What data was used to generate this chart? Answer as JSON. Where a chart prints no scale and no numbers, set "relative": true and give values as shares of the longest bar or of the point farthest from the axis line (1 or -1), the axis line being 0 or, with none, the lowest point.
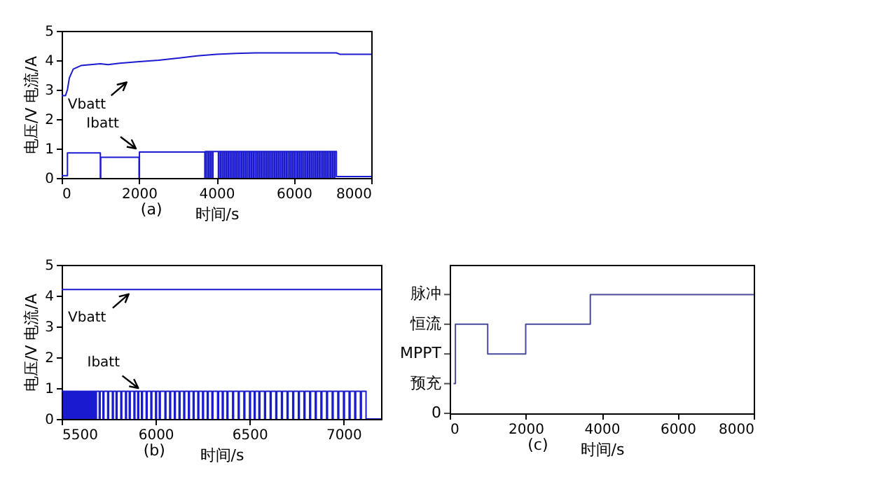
{
  "chart_data": [
    {
      "type": "line",
      "xlabel": "时间/s",
      "ylabel": "电压/V 电流/A",
      "annotations": [
        "(a)"
      ],
      "xlim": [
        0,
        8000
      ],
      "ylim": [
        0,
        5
      ],
      "xticks": [
        0,
        2000,
        4000,
        6000,
        8000
      ],
      "yticks": [
        0,
        1,
        2,
        3,
        4,
        5
      ],
      "series": [
        {
          "name": "Vbatt",
          "color": "#1a1ad0",
          "x": [
            0,
            100,
            150,
            200,
            300,
            500,
            1000,
            1200,
            1500,
            2000,
            2500,
            3000,
            3500,
            4000,
            4500,
            5000,
            6000,
            7100,
            7200,
            8000
          ],
          "values": [
            2.8,
            2.8,
            3.0,
            3.4,
            3.7,
            3.82,
            3.88,
            3.85,
            3.9,
            3.95,
            4.0,
            4.07,
            4.15,
            4.2,
            4.23,
            4.25,
            4.25,
            4.25,
            4.2,
            4.2
          ]
        },
        {
          "name": "Ibatt",
          "color": "#1a1ad0",
          "type": "step",
          "x": [
            0,
            150,
            1000,
            1010,
            2000,
            2010,
            3700,
            3710,
            3750,
            3760,
            3800,
            3810,
            3850,
            3860,
            3900,
            3910,
            4050,
            4060,
            4100,
            4110,
            4150,
            4160,
            4200,
            4210,
            4250,
            4260,
            4300,
            4310,
            4350,
            4360,
            4400,
            4410,
            4450,
            4460,
            4500,
            4510,
            4550,
            4560,
            4600,
            4610,
            4650,
            4660,
            4700,
            4710,
            4750,
            4760,
            4800,
            4810,
            4850,
            4860,
            4900,
            4910,
            4950,
            4960,
            5000,
            5010,
            5050,
            5060,
            5100,
            5110,
            5150,
            5160,
            5200,
            5210,
            5250,
            5260,
            5300,
            5310,
            5350,
            5360,
            5400,
            5410,
            5450,
            5460,
            5500,
            5510,
            5550,
            5560,
            5600,
            5610,
            5650,
            5660,
            5700,
            5710,
            5750,
            5760,
            5800,
            5810,
            5850,
            5860,
            5900,
            5910,
            5950,
            5960,
            6000,
            6010,
            6050,
            6060,
            6100,
            6110,
            6150,
            6160,
            6200,
            6210,
            6250,
            6260,
            6300,
            6310,
            6350,
            6360,
            6400,
            6410,
            6450,
            6460,
            6500,
            6510,
            6550,
            6560,
            6600,
            6610,
            6650,
            6660,
            6700,
            6710,
            6750,
            6760,
            6800,
            6810,
            6850,
            6860,
            6900,
            6910,
            6950,
            6960,
            7000,
            7010,
            7050,
            7060,
            7100,
            8000
          ],
          "values": [
            0.08,
            0.85,
            0,
            0.7,
            0,
            0.88,
            0,
            0.9,
            0,
            0.9,
            0,
            0.9,
            0,
            0.9,
            0,
            0.9,
            0,
            0.9,
            0,
            0.9,
            0,
            0.9,
            0,
            0.9,
            0,
            0.9,
            0,
            0.9,
            0,
            0.9,
            0,
            0.9,
            0,
            0.9,
            0,
            0.9,
            0,
            0.9,
            0,
            0.9,
            0,
            0.9,
            0,
            0.9,
            0,
            0.9,
            0,
            0.9,
            0,
            0.9,
            0,
            0.9,
            0,
            0.9,
            0,
            0.9,
            0,
            0.9,
            0,
            0.9,
            0,
            0.9,
            0,
            0.9,
            0,
            0.9,
            0,
            0.9,
            0,
            0.9,
            0,
            0.9,
            0,
            0.9,
            0,
            0.9,
            0,
            0.9,
            0,
            0.9,
            0,
            0.9,
            0,
            0.9,
            0,
            0.9,
            0,
            0.9,
            0,
            0.9,
            0,
            0.9,
            0,
            0.9,
            0,
            0.9,
            0,
            0.9,
            0,
            0.9,
            0,
            0.9,
            0,
            0.9,
            0,
            0.9,
            0,
            0.9,
            0,
            0.9,
            0,
            0.9,
            0,
            0.9,
            0,
            0.9,
            0,
            0.9,
            0,
            0.9,
            0,
            0.9,
            0,
            0.9,
            0,
            0.9,
            0,
            0.9,
            0,
            0.9,
            0,
            0.9,
            0,
            0.9,
            0,
            0.9,
            0,
            0.9,
            0.05,
            0.05
          ]
        }
      ]
    },
    {
      "type": "line",
      "xlabel": "时间/s",
      "ylabel": "电压/V 电流/A",
      "annotations": [
        "(b)"
      ],
      "xlim": [
        5500,
        7200
      ],
      "ylim": [
        0,
        5
      ],
      "xticks": [
        5500,
        6000,
        6500,
        7000
      ],
      "yticks": [
        0,
        1,
        2,
        3,
        4,
        5
      ],
      "series": [
        {
          "name": "Vbatt",
          "color": "#1a1ad0",
          "x": [
            5500,
            7200
          ],
          "values": [
            4.2,
            4.2
          ]
        },
        {
          "name": "Ibatt",
          "color": "#1a1ad0",
          "type": "step",
          "x": [
            5500,
            5510,
            5515,
            5520,
            5525,
            5530,
            5535,
            5540,
            5545,
            5550,
            5555,
            5560,
            5565,
            5570,
            5575,
            5580,
            5585,
            5590,
            5595,
            5600,
            5605,
            5610,
            5615,
            5620,
            5625,
            5630,
            5635,
            5640,
            5645,
            5650,
            5655,
            5660,
            5665,
            5670,
            5675,
            5680,
            5685,
            5700,
            5705,
            5720,
            5725,
            5745,
            5750,
            5770,
            5775,
            5790,
            5795,
            5815,
            5820,
            5840,
            5845,
            5860,
            5865,
            5885,
            5890,
            5905,
            5910,
            5925,
            5930,
            5950,
            5955,
            5975,
            5980,
            6000,
            6005,
            6020,
            6025,
            6050,
            6055,
            6075,
            6080,
            6100,
            6105,
            6125,
            6130,
            6150,
            6155,
            6175,
            6180,
            6200,
            6205,
            6225,
            6230,
            6250,
            6255,
            6275,
            6280,
            6300,
            6305,
            6330,
            6335,
            6355,
            6360,
            6380,
            6385,
            6410,
            6415,
            6440,
            6445,
            6470,
            6475,
            6500,
            6505,
            6525,
            6530,
            6550,
            6555,
            6580,
            6585,
            6610,
            6615,
            6640,
            6645,
            6670,
            6675,
            6700,
            6705,
            6730,
            6735,
            6760,
            6765,
            6790,
            6795,
            6820,
            6825,
            6850,
            6855,
            6880,
            6885,
            6910,
            6915,
            6940,
            6945,
            6970,
            6975,
            7000,
            7005,
            7030,
            7035,
            7060,
            7065,
            7090,
            7095,
            7120,
            7200
          ],
          "values": [
            0.9,
            0,
            0.9,
            0,
            0.9,
            0,
            0.9,
            0,
            0.9,
            0,
            0.9,
            0,
            0.9,
            0,
            0.9,
            0,
            0.9,
            0,
            0.9,
            0,
            0.9,
            0,
            0.9,
            0,
            0.9,
            0,
            0.9,
            0,
            0.9,
            0,
            0.9,
            0,
            0.9,
            0,
            0.9,
            0,
            0.9,
            0,
            0.9,
            0,
            0.9,
            0,
            0.9,
            0,
            0.9,
            0,
            0.9,
            0,
            0.9,
            0,
            0.9,
            0,
            0.9,
            0,
            0.9,
            0,
            0.9,
            0,
            0.9,
            0,
            0.9,
            0,
            0.9,
            0,
            0.9,
            0,
            0.9,
            0,
            0.9,
            0,
            0.9,
            0,
            0.9,
            0,
            0.9,
            0,
            0.9,
            0,
            0.9,
            0,
            0.9,
            0,
            0.9,
            0,
            0.9,
            0,
            0.9,
            0,
            0.9,
            0,
            0.9,
            0,
            0.9,
            0,
            0.9,
            0,
            0.9,
            0,
            0.9,
            0,
            0.9,
            0,
            0.9,
            0,
            0.9,
            0,
            0.9,
            0,
            0.9,
            0,
            0.9,
            0,
            0.9,
            0,
            0.9,
            0,
            0.9,
            0,
            0.9,
            0,
            0.9,
            0,
            0.9,
            0,
            0.9,
            0,
            0.9,
            0,
            0.9,
            0,
            0.9,
            0,
            0.9,
            0,
            0.9,
            0,
            0.9,
            0,
            0.9,
            0,
            0.9,
            0,
            0.9,
            0,
            0
          ]
        }
      ]
    },
    {
      "type": "step",
      "relative": true,
      "xlabel": "时间/s",
      "annotations": [
        "(c)",
        "0",
        "预充",
        "MPPT",
        "恒流",
        "脉冲"
      ],
      "xlim": [
        0,
        8000
      ],
      "xticks": [
        0,
        2000,
        4000,
        6000,
        8000
      ],
      "series": [
        {
          "color": "#4a4a9a",
          "x": [
            100,
            150,
            1000,
            2000,
            3700,
            8000
          ],
          "values": [
            0.25,
            0.75,
            0.5,
            0.75,
            1,
            1
          ]
        }
      ]
    }
  ]
}
